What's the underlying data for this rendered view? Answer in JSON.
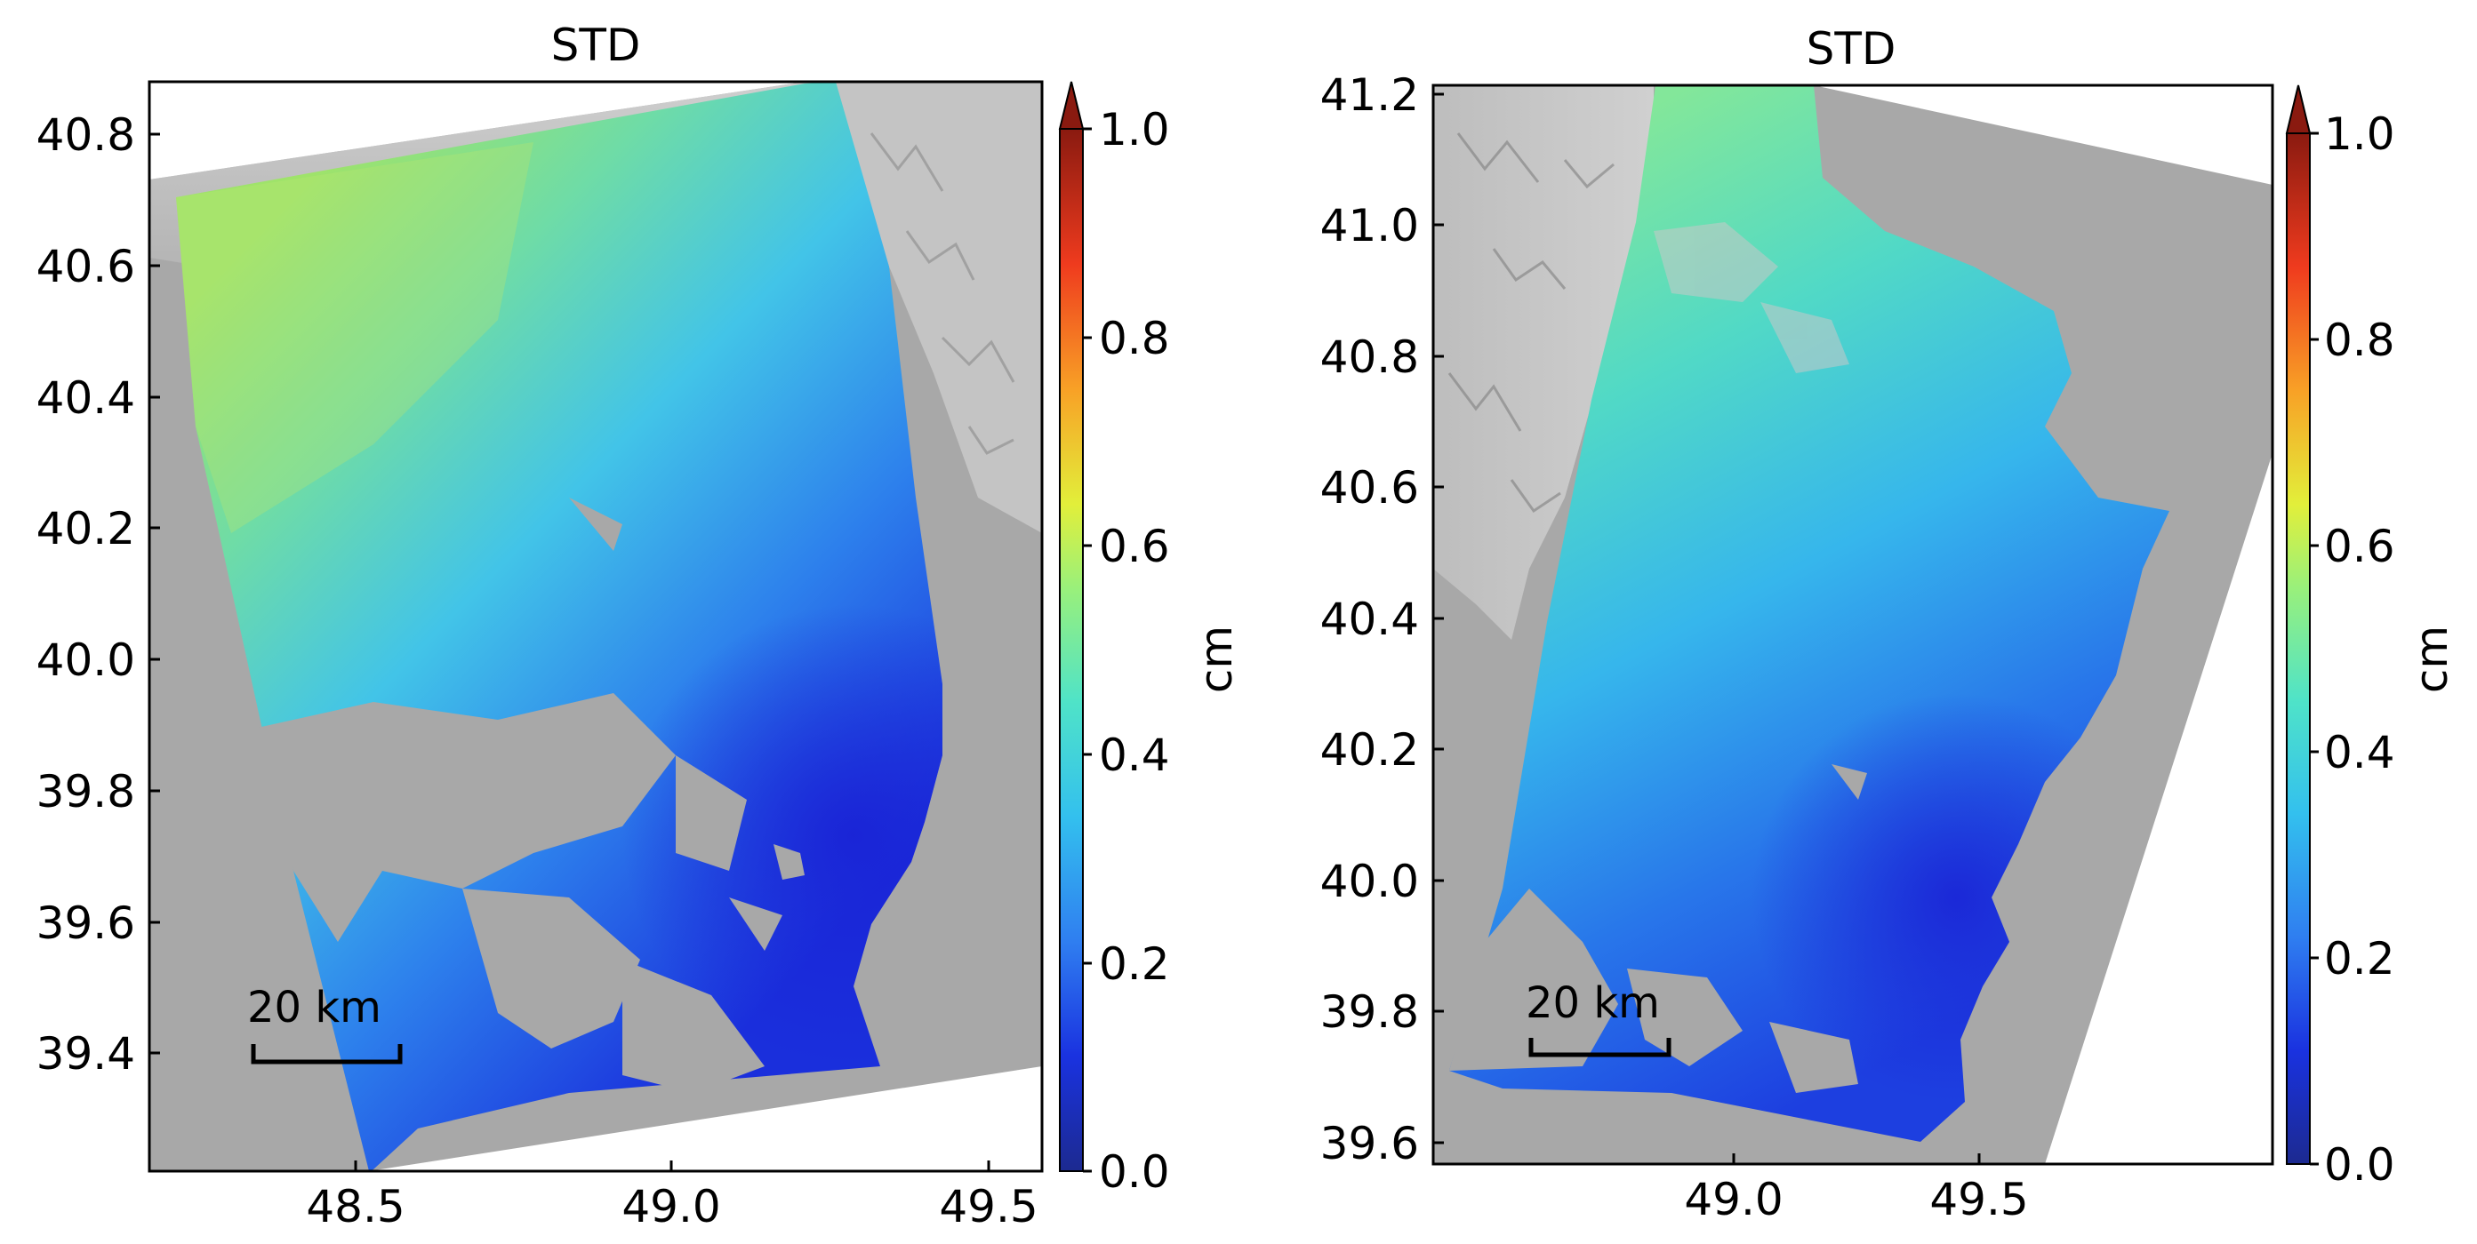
{
  "chart_data": [
    {
      "type": "heatmap",
      "title": "STD",
      "colorbar": {
        "label": "cm",
        "range": [
          0.0,
          1.0
        ],
        "ticks": [
          "0.0",
          "0.2",
          "0.4",
          "0.6",
          "0.8",
          "1.0"
        ],
        "colormap": "jet",
        "extend": "max"
      },
      "xlim": [
        48.18,
        49.6
      ],
      "ylim": [
        39.22,
        40.88
      ],
      "xticks": [
        "48.5",
        "49.0",
        "49.5"
      ],
      "yticks": [
        "39.4",
        "39.6",
        "39.8",
        "40.0",
        "40.2",
        "40.4",
        "40.6",
        "40.8"
      ],
      "scale_bar": "20 km",
      "no_data_color": "#a8a8a8"
    },
    {
      "type": "heatmap",
      "title": "STD",
      "colorbar": {
        "label": "cm",
        "range": [
          0.0,
          1.0
        ],
        "ticks": [
          "0.0",
          "0.2",
          "0.4",
          "0.6",
          "0.8",
          "1.0"
        ],
        "colormap": "jet",
        "extend": "max"
      },
      "xlim": [
        48.52,
        49.92
      ],
      "ylim": [
        39.57,
        41.23
      ],
      "xticks": [
        "49.0",
        "49.5"
      ],
      "yticks": [
        "39.6",
        "39.8",
        "40.0",
        "40.2",
        "40.4",
        "40.6",
        "40.8",
        "41.0",
        "41.2"
      ],
      "scale_bar": "20 km",
      "no_data_color": "#a8a8a8"
    }
  ]
}
